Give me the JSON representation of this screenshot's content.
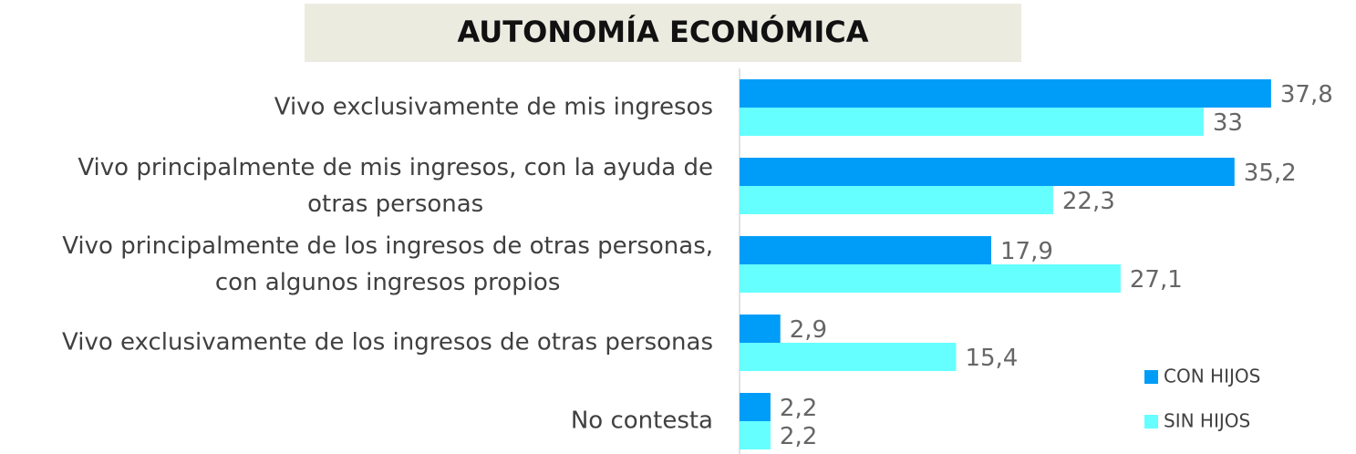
{
  "chart_data": {
    "type": "hbar",
    "title": "AUTONOMÍA ECONÓMICA",
    "categories": [
      "Vivo exclusivamente de mis ingresos",
      "Vivo principalmente de mis ingresos, con la ayuda de\notras personas",
      "Vivo principalmente de los ingresos de otras personas,\ncon algunos ingresos propios",
      "Vivo exclusivamente de los ingresos de otras personas",
      "No contesta"
    ],
    "series": [
      {
        "name": "CON HIJOS",
        "color": "#009df8",
        "values": [
          37.8,
          35.2,
          17.9,
          2.9,
          2.2
        ],
        "value_labels": [
          "37,8",
          "35,2",
          "17,9",
          "2,9",
          "2,2"
        ]
      },
      {
        "name": "SIN HIJOS",
        "color": "#66ffff",
        "values": [
          33,
          22.3,
          27.1,
          15.4,
          2.2
        ],
        "value_labels": [
          "33",
          "22,3",
          "27,1",
          "15,4",
          "2,2"
        ]
      }
    ],
    "xlim": [
      0,
      45
    ],
    "legend": "lower right"
  }
}
